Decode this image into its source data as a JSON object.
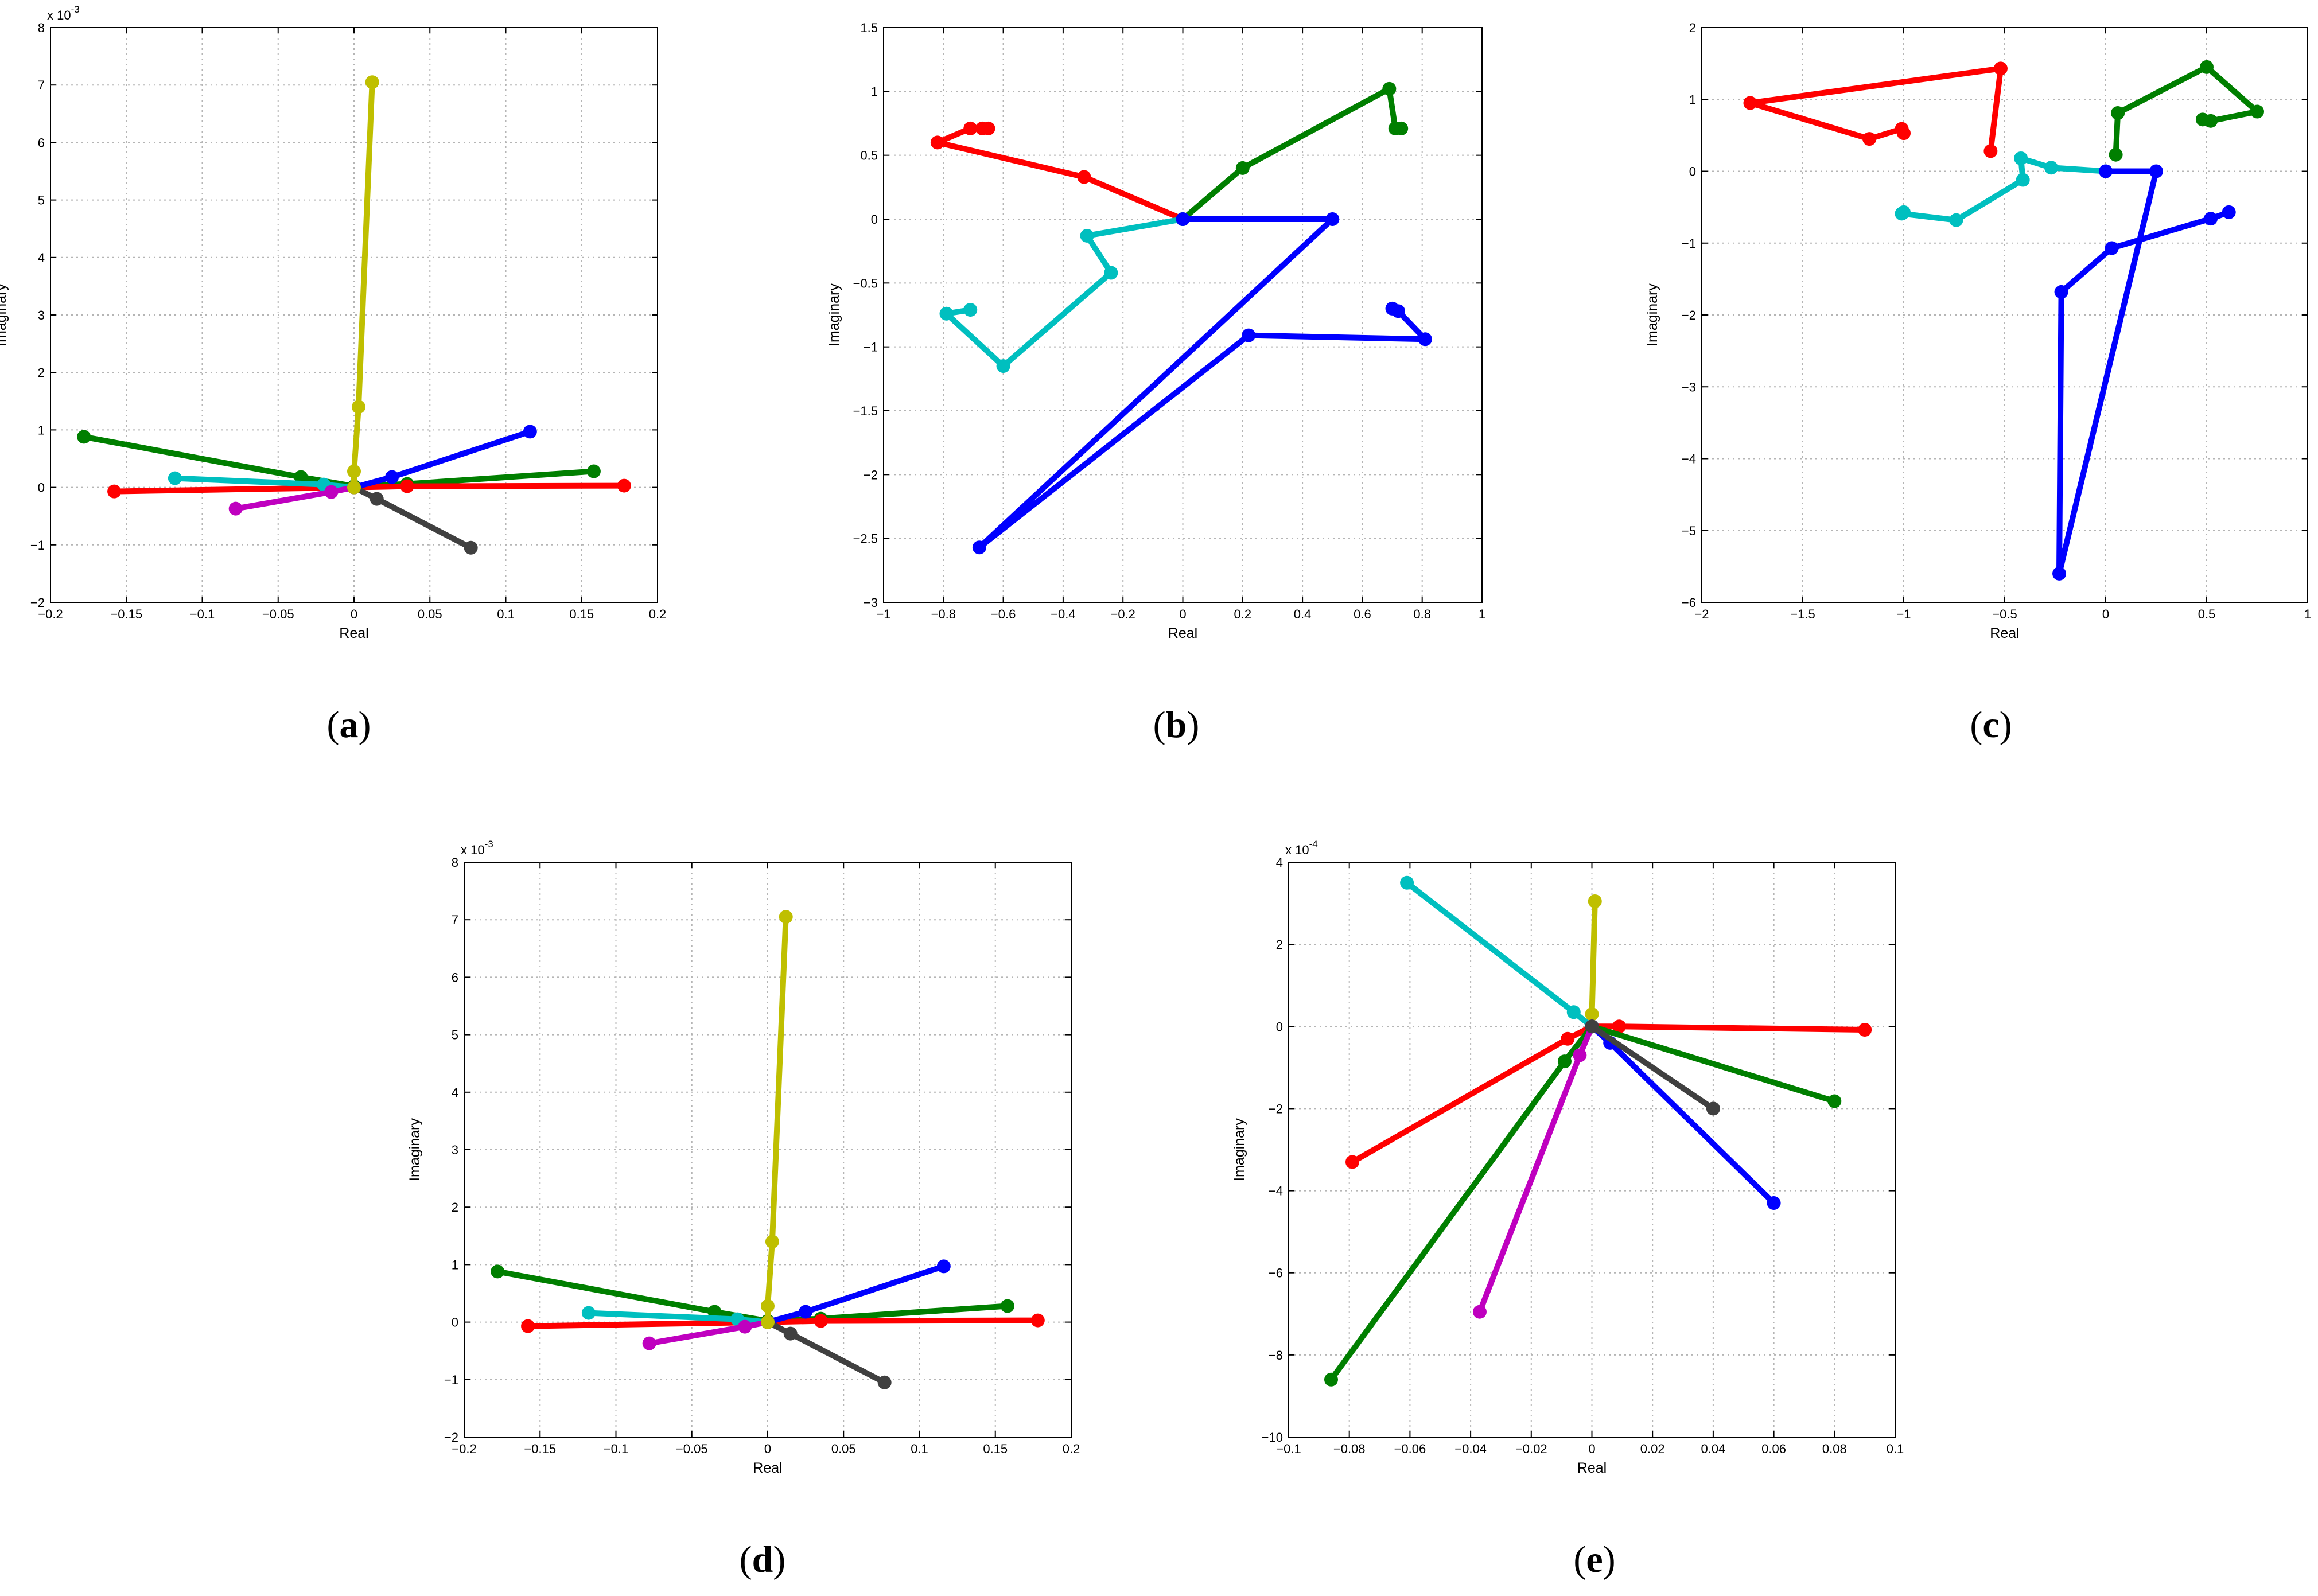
{
  "colors": {
    "red": "#ff0000",
    "green": "#007f00",
    "blue": "#0000ff",
    "cyan": "#00bfbf",
    "magenta": "#bf00bf",
    "olive": "#bfbf00",
    "darkgray": "#404040"
  },
  "chart_data": [
    {
      "id": "a",
      "type": "line",
      "caption": {
        "open": "(",
        "letter": "a",
        "close": ")"
      },
      "xlabel": "Real",
      "ylabel": "Imaginary",
      "exponent": "x 10",
      "exponent_power": "-3",
      "xlim": [
        -0.2,
        0.2
      ],
      "ylim": [
        -2,
        8
      ],
      "xticks": [
        -0.2,
        -0.15,
        -0.1,
        -0.05,
        0,
        0.05,
        0.1,
        0.15,
        0.2
      ],
      "xtick_labels": [
        "−0.2",
        "−0.15",
        "−0.1",
        "−0.05",
        "0",
        "0.05",
        "0.1",
        "0.15",
        "0.2"
      ],
      "yticks": [
        -2,
        -1,
        0,
        1,
        2,
        3,
        4,
        5,
        6,
        7,
        8
      ],
      "ytick_labels": [
        "−2",
        "−1",
        "0",
        "1",
        "2",
        "3",
        "4",
        "5",
        "6",
        "7",
        "8"
      ],
      "series": [
        {
          "name": "green",
          "color": "green",
          "points": [
            [
              -0.178,
              0.88
            ],
            [
              -0.035,
              0.18
            ],
            [
              0.0,
              0.02
            ],
            [
              0.035,
              0.06
            ],
            [
              0.158,
              0.28
            ]
          ]
        },
        {
          "name": "red",
          "color": "red",
          "points": [
            [
              -0.158,
              -0.07
            ],
            [
              0.0,
              0.0
            ],
            [
              0.035,
              0.02
            ],
            [
              0.178,
              0.03
            ]
          ]
        },
        {
          "name": "cyan",
          "color": "cyan",
          "points": [
            [
              -0.118,
              0.16
            ],
            [
              -0.02,
              0.05
            ],
            [
              0.0,
              0.0
            ]
          ]
        },
        {
          "name": "blue",
          "color": "blue",
          "points": [
            [
              0.0,
              0.0
            ],
            [
              0.025,
              0.18
            ],
            [
              0.116,
              0.97
            ]
          ]
        },
        {
          "name": "magenta",
          "color": "magenta",
          "points": [
            [
              -0.078,
              -0.37
            ],
            [
              -0.015,
              -0.08
            ],
            [
              0.0,
              0.0
            ]
          ]
        },
        {
          "name": "darkgray",
          "color": "darkgray",
          "points": [
            [
              0.0,
              0.0
            ],
            [
              0.015,
              -0.2
            ],
            [
              0.077,
              -1.05
            ]
          ]
        },
        {
          "name": "olive",
          "color": "olive",
          "points": [
            [
              0.0,
              0.0
            ],
            [
              0.0,
              0.28
            ],
            [
              0.003,
              1.4
            ],
            [
              0.012,
              7.05
            ]
          ]
        }
      ]
    },
    {
      "id": "b",
      "type": "line",
      "caption": {
        "open": "(",
        "letter": "b",
        "close": ")"
      },
      "xlabel": "Real",
      "ylabel": "Imaginary",
      "exponent": "",
      "exponent_power": "",
      "xlim": [
        -1,
        1
      ],
      "ylim": [
        -3,
        1.5
      ],
      "xticks": [
        -1,
        -0.8,
        -0.6,
        -0.4,
        -0.2,
        0,
        0.2,
        0.4,
        0.6,
        0.8,
        1
      ],
      "xtick_labels": [
        "−1",
        "−0.8",
        "−0.6",
        "−0.4",
        "−0.2",
        "0",
        "0.2",
        "0.4",
        "0.6",
        "0.8",
        "1"
      ],
      "yticks": [
        -3,
        -2.5,
        -2,
        -1.5,
        -1,
        -0.5,
        0,
        0.5,
        1,
        1.5
      ],
      "ytick_labels": [
        "−3",
        "−2.5",
        "−2",
        "−1.5",
        "−1",
        "−0.5",
        "0",
        "0.5",
        "1",
        "1.5"
      ],
      "series": [
        {
          "name": "red",
          "color": "red",
          "points": [
            [
              0.0,
              0.0
            ],
            [
              -0.33,
              0.33
            ],
            [
              -0.82,
              0.6
            ],
            [
              -0.71,
              0.71
            ],
            [
              -0.67,
              0.71
            ],
            [
              -0.65,
              0.71
            ]
          ]
        },
        {
          "name": "green",
          "color": "green",
          "points": [
            [
              0.0,
              0.0
            ],
            [
              0.2,
              0.4
            ],
            [
              0.69,
              1.02
            ],
            [
              0.71,
              0.71
            ],
            [
              0.73,
              0.71
            ]
          ]
        },
        {
          "name": "cyan",
          "color": "cyan",
          "points": [
            [
              0.0,
              0.0
            ],
            [
              -0.32,
              -0.13
            ],
            [
              -0.24,
              -0.42
            ],
            [
              -0.6,
              -1.15
            ],
            [
              -0.79,
              -0.74
            ],
            [
              -0.71,
              -0.71
            ]
          ]
        },
        {
          "name": "blue",
          "color": "blue",
          "points": [
            [
              0.0,
              0.0
            ],
            [
              0.5,
              0.0
            ],
            [
              -0.68,
              -2.57
            ],
            [
              0.22,
              -0.91
            ],
            [
              0.81,
              -0.94
            ],
            [
              0.72,
              -0.72
            ],
            [
              0.7,
              -0.7
            ]
          ]
        }
      ]
    },
    {
      "id": "c",
      "type": "line",
      "caption": {
        "open": "(",
        "letter": "c",
        "close": ")"
      },
      "xlabel": "Real",
      "ylabel": "Imaginary",
      "exponent": "",
      "exponent_power": "",
      "xlim": [
        -2,
        1
      ],
      "ylim": [
        -6,
        2
      ],
      "xticks": [
        -2,
        -1.5,
        -1,
        -0.5,
        0,
        0.5,
        1
      ],
      "xtick_labels": [
        "−2",
        "−1.5",
        "−1",
        "−0.5",
        "0",
        "0.5",
        "1"
      ],
      "yticks": [
        -6,
        -5,
        -4,
        -3,
        -2,
        -1,
        0,
        1,
        2
      ],
      "ytick_labels": [
        "−6",
        "−5",
        "−4",
        "−3",
        "−2",
        "−1",
        "0",
        "1",
        "2"
      ],
      "series": [
        {
          "name": "red",
          "color": "red",
          "points": [
            [
              -0.57,
              0.28
            ],
            [
              -0.52,
              1.43
            ],
            [
              -1.76,
              0.95
            ],
            [
              -1.17,
              0.45
            ],
            [
              -1.01,
              0.59
            ],
            [
              -1.0,
              0.53
            ]
          ]
        },
        {
          "name": "green",
          "color": "green",
          "points": [
            [
              0.05,
              0.23
            ],
            [
              0.06,
              0.81
            ],
            [
              0.5,
              1.45
            ],
            [
              0.75,
              0.83
            ],
            [
              0.52,
              0.7
            ],
            [
              0.48,
              0.72
            ]
          ]
        },
        {
          "name": "cyan",
          "color": "cyan",
          "points": [
            [
              0.0,
              0.0
            ],
            [
              -0.27,
              0.05
            ],
            [
              -0.42,
              0.18
            ],
            [
              -0.41,
              -0.12
            ],
            [
              -0.74,
              -0.68
            ],
            [
              -1.01,
              -0.59
            ],
            [
              -1.0,
              -0.57
            ]
          ]
        },
        {
          "name": "blue",
          "color": "blue",
          "points": [
            [
              0.0,
              0.0
            ],
            [
              0.25,
              0.0
            ],
            [
              -0.23,
              -5.6
            ],
            [
              -0.22,
              -1.68
            ],
            [
              0.03,
              -1.07
            ],
            [
              0.52,
              -0.66
            ],
            [
              0.61,
              -0.57
            ]
          ]
        }
      ]
    },
    {
      "id": "d",
      "type": "line",
      "caption": {
        "open": "(",
        "letter": "d",
        "close": ")"
      },
      "xlabel": "Real",
      "ylabel": "Imaginary",
      "exponent": "x 10",
      "exponent_power": "-3",
      "xlim": [
        -0.2,
        0.2
      ],
      "ylim": [
        -2,
        8
      ],
      "xticks": [
        -0.2,
        -0.15,
        -0.1,
        -0.05,
        0,
        0.05,
        0.1,
        0.15,
        0.2
      ],
      "xtick_labels": [
        "−0.2",
        "−0.15",
        "−0.1",
        "−0.05",
        "0",
        "0.05",
        "0.1",
        "0.15",
        "0.2"
      ],
      "yticks": [
        -2,
        -1,
        0,
        1,
        2,
        3,
        4,
        5,
        6,
        7,
        8
      ],
      "ytick_labels": [
        "−2",
        "−1",
        "0",
        "1",
        "2",
        "3",
        "4",
        "5",
        "6",
        "7",
        "8"
      ],
      "series": [
        {
          "name": "green",
          "color": "green",
          "points": [
            [
              -0.178,
              0.88
            ],
            [
              -0.035,
              0.18
            ],
            [
              0.0,
              0.02
            ],
            [
              0.035,
              0.06
            ],
            [
              0.158,
              0.28
            ]
          ]
        },
        {
          "name": "red",
          "color": "red",
          "points": [
            [
              -0.158,
              -0.07
            ],
            [
              0.0,
              0.0
            ],
            [
              0.035,
              0.02
            ],
            [
              0.178,
              0.03
            ]
          ]
        },
        {
          "name": "cyan",
          "color": "cyan",
          "points": [
            [
              -0.118,
              0.16
            ],
            [
              -0.02,
              0.05
            ],
            [
              0.0,
              0.0
            ]
          ]
        },
        {
          "name": "blue",
          "color": "blue",
          "points": [
            [
              0.0,
              0.0
            ],
            [
              0.025,
              0.18
            ],
            [
              0.116,
              0.97
            ]
          ]
        },
        {
          "name": "magenta",
          "color": "magenta",
          "points": [
            [
              -0.078,
              -0.37
            ],
            [
              -0.015,
              -0.08
            ],
            [
              0.0,
              0.0
            ]
          ]
        },
        {
          "name": "darkgray",
          "color": "darkgray",
          "points": [
            [
              0.0,
              0.0
            ],
            [
              0.015,
              -0.2
            ],
            [
              0.077,
              -1.05
            ]
          ]
        },
        {
          "name": "olive",
          "color": "olive",
          "points": [
            [
              0.0,
              0.0
            ],
            [
              0.0,
              0.28
            ],
            [
              0.003,
              1.4
            ],
            [
              0.012,
              7.05
            ]
          ]
        }
      ]
    },
    {
      "id": "e",
      "type": "line",
      "caption": {
        "open": "(",
        "letter": "e",
        "close": ")"
      },
      "xlabel": "Real",
      "ylabel": "Imaginary",
      "exponent": "x 10",
      "exponent_power": "-4",
      "xlim": [
        -0.1,
        0.1
      ],
      "ylim": [
        -10,
        4
      ],
      "xticks": [
        -0.1,
        -0.08,
        -0.06,
        -0.04,
        -0.02,
        0,
        0.02,
        0.04,
        0.06,
        0.08,
        0.1
      ],
      "xtick_labels": [
        "−0.1",
        "−0.08",
        "−0.06",
        "−0.04",
        "−0.02",
        "0",
        "0.02",
        "0.04",
        "0.06",
        "0.08",
        "0.1"
      ],
      "yticks": [
        -10,
        -8,
        -6,
        -4,
        -2,
        0,
        2,
        4
      ],
      "ytick_labels": [
        "−10",
        "−8",
        "−6",
        "−4",
        "−2",
        "0",
        "2",
        "4"
      ],
      "series": [
        {
          "name": "cyan",
          "color": "cyan",
          "points": [
            [
              -0.061,
              3.5
            ],
            [
              -0.006,
              0.35
            ],
            [
              0.0,
              0.0
            ]
          ]
        },
        {
          "name": "olive",
          "color": "olive",
          "points": [
            [
              0.0,
              0.0
            ],
            [
              0.0,
              0.3
            ],
            [
              0.001,
              3.05
            ]
          ]
        },
        {
          "name": "red",
          "color": "red",
          "points": [
            [
              -0.079,
              -3.3
            ],
            [
              -0.008,
              -0.3
            ],
            [
              0.0,
              0.0
            ],
            [
              0.009,
              0.0
            ],
            [
              0.09,
              -0.08
            ]
          ]
        },
        {
          "name": "green",
          "color": "green",
          "points": [
            [
              -0.086,
              -8.6
            ],
            [
              -0.009,
              -0.85
            ],
            [
              0.0,
              0.0
            ],
            [
              0.08,
              -1.82
            ]
          ]
        },
        {
          "name": "magenta",
          "color": "magenta",
          "points": [
            [
              -0.037,
              -6.95
            ],
            [
              -0.004,
              -0.7
            ],
            [
              0.0,
              0.0
            ]
          ]
        },
        {
          "name": "blue",
          "color": "blue",
          "points": [
            [
              0.0,
              0.0
            ],
            [
              0.006,
              -0.4
            ],
            [
              0.06,
              -4.3
            ]
          ]
        },
        {
          "name": "darkgray",
          "color": "darkgray",
          "points": [
            [
              0.0,
              0.0
            ],
            [
              0.04,
              -2.0
            ]
          ]
        }
      ]
    }
  ]
}
